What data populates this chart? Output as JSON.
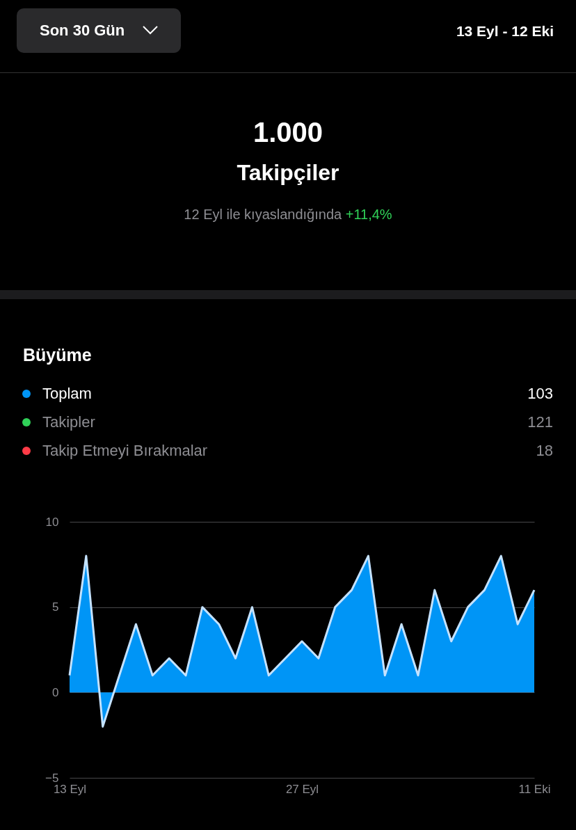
{
  "chart_data": {
    "type": "area",
    "title": "Büyüme",
    "annotations": [
      "Son 30 Gün",
      "13 Eyl - 12 Eki",
      "1.000",
      "Takipçiler",
      "12 Eyl ile kıyaslandığında",
      "+11,4%",
      "103",
      "121",
      "18"
    ],
    "categories": [
      "13 Eyl",
      null,
      null,
      null,
      null,
      null,
      null,
      null,
      null,
      null,
      null,
      null,
      null,
      null,
      "27 Eyl",
      null,
      null,
      null,
      null,
      null,
      null,
      null,
      null,
      null,
      null,
      null,
      null,
      null,
      "11 Eki"
    ],
    "series": [
      {
        "name": "Toplam",
        "color": "#0095f6",
        "values": [
          1,
          8,
          -2,
          1,
          4,
          1,
          2,
          1,
          5,
          4,
          2,
          5,
          1,
          2,
          3,
          2,
          5,
          6,
          8,
          1,
          4,
          1,
          6,
          3,
          5,
          6,
          8,
          4,
          6
        ]
      },
      {
        "name": "Takipler",
        "color": "#30d158",
        "values": [
          null,
          null,
          null,
          null,
          null,
          null,
          null,
          null,
          null,
          null,
          null,
          null,
          null,
          null,
          null,
          null,
          null,
          null,
          null,
          null,
          null,
          null,
          null,
          null,
          null,
          null,
          null,
          null,
          null
        ]
      },
      {
        "name": "Takip Etmeyi Bırakmalar",
        "color": "#ff3b47",
        "values": [
          null,
          null,
          null,
          null,
          null,
          null,
          null,
          null,
          null,
          null,
          null,
          null,
          null,
          null,
          null,
          null,
          null,
          null,
          null,
          null,
          null,
          null,
          null,
          null,
          null,
          null,
          null,
          null,
          null
        ]
      }
    ],
    "ylim": [
      -5,
      10
    ],
    "yticks": [
      -5,
      0,
      5,
      10
    ],
    "grid": "y",
    "legend": "top"
  }
}
